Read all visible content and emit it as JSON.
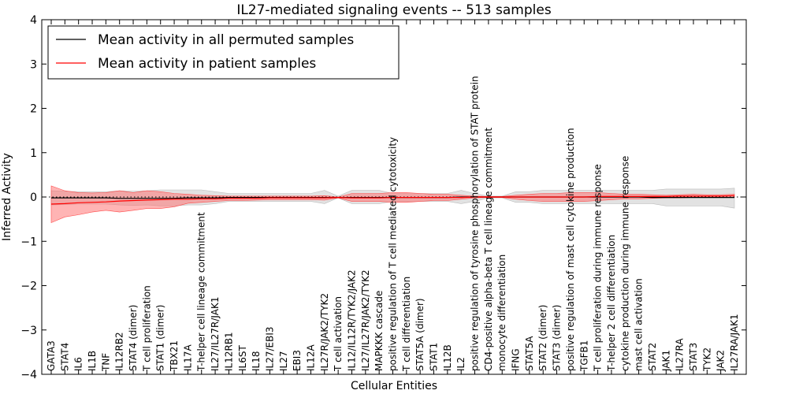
{
  "chart_data": {
    "type": "line",
    "title": "IL27-mediated signaling events -- 513 samples",
    "xlabel": "Cellular Entities",
    "ylabel": "Inferred Activity",
    "ylim": [
      -4,
      4
    ],
    "yticks": [
      -4,
      -3,
      -2,
      -1,
      0,
      1,
      2,
      3,
      4
    ],
    "ytick_labels": [
      "−4",
      "−3",
      "−2",
      "−1",
      "0",
      "1",
      "2",
      "3",
      "4"
    ],
    "legend_position": "top-left",
    "categories": [
      "GATA3",
      "STAT4",
      "IL6",
      "IL1B",
      "TNF",
      "IL12RB2",
      "STAT4 (dimer)",
      "T cell proliferation",
      "STAT1 (dimer)",
      "TBX21",
      "IL17A",
      "T-helper cell lineage commitment",
      "IL27/IL27R/JAK1",
      "IL12RB1",
      "IL6ST",
      "IL18",
      "IL27/EBI3",
      "IL27",
      "EBI3",
      "IL12A",
      "IL27R/JAK2/TYK2",
      "T cell activation",
      "IL12/IL12R/TYK2/JAK2",
      "IL27/IL27R/JAK2/TYK2",
      "MAPKKK cascade",
      "positive regulation of T cell mediated cytotoxicity",
      "T cell differentiation",
      "STAT5A (dimer)",
      "STAT1",
      "IL12B",
      "IL2",
      "positive regulation of tyrosine phosphorylation of STAT protein",
      "CD4-positive alpha-beta T cell lineage commitment",
      "monocyte differentiation",
      "IFNG",
      "STAT5A",
      "STAT2 (dimer)",
      "STAT3 (dimer)",
      "positive regulation of mast cell cytokine production",
      "TGFB1",
      "T cell proliferation during immune response",
      "T-helper 2 cell differentiation",
      "cytokine production during immune response",
      "mast cell activation",
      "STAT2",
      "JAK1",
      "IL27RA",
      "STAT3",
      "TYK2",
      "JAK2",
      "IL27RA/JAK1"
    ],
    "series": [
      {
        "name": "Mean activity in all permuted samples",
        "color": "#000000",
        "values": [
          -0.02,
          -0.02,
          -0.02,
          -0.02,
          -0.02,
          -0.03,
          -0.03,
          -0.03,
          -0.03,
          -0.03,
          -0.02,
          -0.02,
          -0.02,
          -0.01,
          -0.01,
          -0.01,
          -0.01,
          -0.01,
          -0.01,
          -0.01,
          -0.01,
          -0.01,
          -0.01,
          -0.01,
          -0.01,
          -0.01,
          -0.01,
          -0.01,
          -0.01,
          -0.01,
          0.0,
          0.0,
          0.0,
          0.0,
          0.0,
          0.0,
          0.0,
          0.0,
          0.0,
          0.0,
          0.0,
          0.0,
          0.0,
          0.0,
          -0.01,
          -0.01,
          -0.01,
          -0.01,
          -0.01,
          -0.01,
          -0.01
        ],
        "lower": [
          -0.18,
          -0.17,
          -0.16,
          -0.16,
          -0.16,
          -0.18,
          -0.19,
          -0.18,
          -0.2,
          -0.2,
          -0.18,
          -0.18,
          -0.15,
          -0.1,
          -0.1,
          -0.1,
          -0.1,
          -0.1,
          -0.1,
          -0.1,
          -0.15,
          -0.02,
          -0.15,
          -0.15,
          -0.15,
          -0.1,
          -0.1,
          -0.1,
          -0.1,
          -0.1,
          -0.15,
          -0.1,
          -0.02,
          -0.02,
          -0.12,
          -0.12,
          -0.15,
          -0.15,
          -0.15,
          -0.15,
          -0.15,
          -0.15,
          -0.15,
          -0.15,
          -0.15,
          -0.2,
          -0.2,
          -0.2,
          -0.2,
          -0.2,
          -0.25
        ],
        "upper": [
          0.14,
          0.13,
          0.12,
          0.12,
          0.12,
          0.14,
          0.13,
          0.14,
          0.16,
          0.16,
          0.16,
          0.16,
          0.12,
          0.08,
          0.08,
          0.08,
          0.08,
          0.08,
          0.08,
          0.08,
          0.15,
          0.02,
          0.15,
          0.15,
          0.15,
          0.08,
          0.08,
          0.08,
          0.08,
          0.08,
          0.15,
          0.08,
          0.02,
          0.02,
          0.12,
          0.12,
          0.15,
          0.15,
          0.15,
          0.15,
          0.15,
          0.15,
          0.15,
          0.15,
          0.15,
          0.18,
          0.18,
          0.18,
          0.18,
          0.18,
          0.2
        ]
      },
      {
        "name": "Mean activity in patient samples",
        "color": "#ff0000",
        "values": [
          -0.16,
          -0.15,
          -0.13,
          -0.12,
          -0.11,
          -0.09,
          -0.08,
          -0.07,
          -0.06,
          -0.05,
          -0.05,
          -0.04,
          -0.04,
          -0.03,
          -0.03,
          -0.03,
          -0.02,
          -0.02,
          -0.02,
          -0.02,
          -0.02,
          -0.01,
          -0.02,
          -0.02,
          -0.02,
          -0.01,
          -0.01,
          -0.01,
          -0.01,
          -0.01,
          -0.01,
          0.0,
          0.0,
          0.0,
          0.0,
          0.0,
          0.0,
          0.0,
          0.0,
          0.0,
          0.01,
          0.01,
          0.01,
          0.01,
          0.01,
          0.01,
          0.02,
          0.02,
          0.02,
          0.02,
          0.03
        ],
        "lower": [
          -0.58,
          -0.45,
          -0.4,
          -0.34,
          -0.3,
          -0.34,
          -0.3,
          -0.26,
          -0.26,
          -0.22,
          -0.14,
          -0.12,
          -0.1,
          -0.08,
          -0.08,
          -0.07,
          -0.06,
          -0.06,
          -0.06,
          -0.06,
          -0.07,
          -0.02,
          -0.1,
          -0.1,
          -0.1,
          -0.12,
          -0.12,
          -0.1,
          -0.08,
          -0.08,
          -0.05,
          -0.02,
          -0.01,
          -0.01,
          -0.05,
          -0.08,
          -0.1,
          -0.1,
          -0.1,
          -0.1,
          -0.08,
          -0.06,
          -0.04,
          -0.04,
          -0.03,
          -0.02,
          -0.02,
          -0.01,
          -0.01,
          -0.01,
          -0.01
        ],
        "upper": [
          0.25,
          0.14,
          0.1,
          0.09,
          0.1,
          0.14,
          0.1,
          0.14,
          0.12,
          0.08,
          0.06,
          0.04,
          0.03,
          0.02,
          0.02,
          0.02,
          0.02,
          0.02,
          0.02,
          0.02,
          0.03,
          0.0,
          0.08,
          0.08,
          0.08,
          0.1,
          0.1,
          0.08,
          0.06,
          0.06,
          0.04,
          0.02,
          0.01,
          0.01,
          0.04,
          0.06,
          0.08,
          0.08,
          0.1,
          0.1,
          0.1,
          0.08,
          0.06,
          0.06,
          0.05,
          0.04,
          0.05,
          0.06,
          0.05,
          0.05,
          0.06
        ]
      }
    ]
  }
}
